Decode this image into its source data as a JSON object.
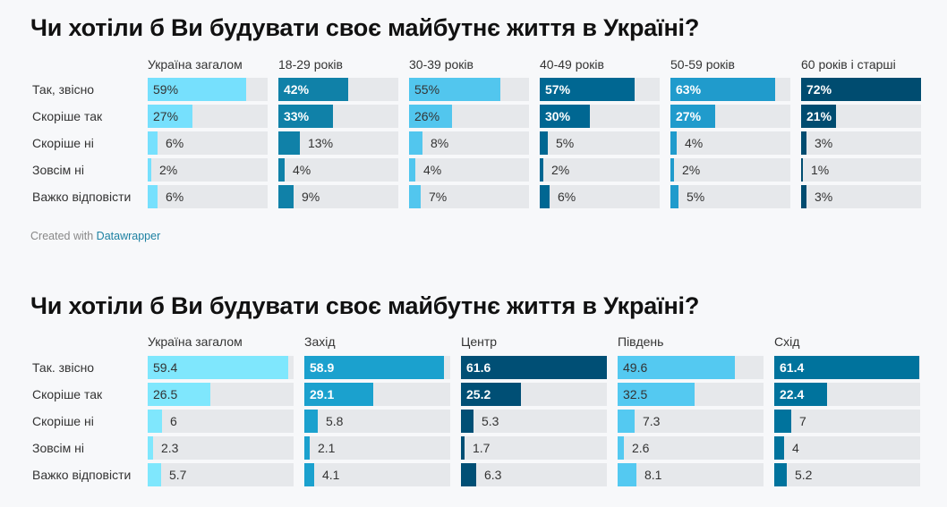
{
  "credit": {
    "prefix": "Created with",
    "link": "Datawrapper"
  },
  "chart_data": [
    {
      "type": "bar",
      "title": "Чи хотіли б Ви будувати своє майбутнє життя в Україні?",
      "categories": [
        "Так, звісно",
        "Скоріше так",
        "Скоріше ні",
        "Зовсім ні",
        "Важко відповісти"
      ],
      "xlim": [
        0,
        72
      ],
      "value_suffix": "%",
      "series": [
        {
          "name": "Україна загалом",
          "values": [
            59,
            27,
            6,
            2,
            6
          ],
          "color": "#76e0fd",
          "text_color": "#333333"
        },
        {
          "name": "18-29 років",
          "values": [
            42,
            33,
            13,
            4,
            9
          ],
          "color": "#1081a8",
          "text_color": "#ffffff"
        },
        {
          "name": "30-39 років",
          "values": [
            55,
            26,
            8,
            4,
            7
          ],
          "color": "#52c6ee",
          "text_color": "#333333"
        },
        {
          "name": "40-49 років",
          "values": [
            57,
            30,
            5,
            2,
            6
          ],
          "color": "#006792",
          "text_color": "#ffffff"
        },
        {
          "name": "50-59 років",
          "values": [
            63,
            27,
            4,
            2,
            5
          ],
          "color": "#209bcc",
          "text_color": "#ffffff"
        },
        {
          "name": "60 років і старші",
          "values": [
            72,
            21,
            3,
            1,
            3
          ],
          "color": "#004c70",
          "text_color": "#ffffff"
        }
      ]
    },
    {
      "type": "bar",
      "title": "Чи хотіли б Ви будувати своє майбутнє життя в Україні?",
      "categories": [
        "Так. звісно",
        "Скоріше так",
        "Скоріше ні",
        "Зовсім ні",
        "Важко відповісти"
      ],
      "xlim": [
        0,
        61.6
      ],
      "value_suffix": "",
      "series": [
        {
          "name": "Україна загалом",
          "values": [
            59.4,
            26.5,
            6,
            2.3,
            5.7
          ],
          "color": "#7fe7fd",
          "text_color": "#333333"
        },
        {
          "name": "Захід",
          "values": [
            58.9,
            29.1,
            5.8,
            2.1,
            4.1
          ],
          "color": "#1ba1ce",
          "text_color": "#ffffff"
        },
        {
          "name": "Центр",
          "values": [
            61.6,
            25.2,
            5.3,
            1.7,
            6.3
          ],
          "color": "#004f75",
          "text_color": "#ffffff"
        },
        {
          "name": "Південь",
          "values": [
            49.6,
            32.5,
            7.3,
            2.6,
            8.1
          ],
          "color": "#54c9f1",
          "text_color": "#333333"
        },
        {
          "name": "Схід",
          "values": [
            61.4,
            22.4,
            7,
            4,
            5.2
          ],
          "color": "#00739d",
          "text_color": "#ffffff"
        }
      ]
    }
  ]
}
